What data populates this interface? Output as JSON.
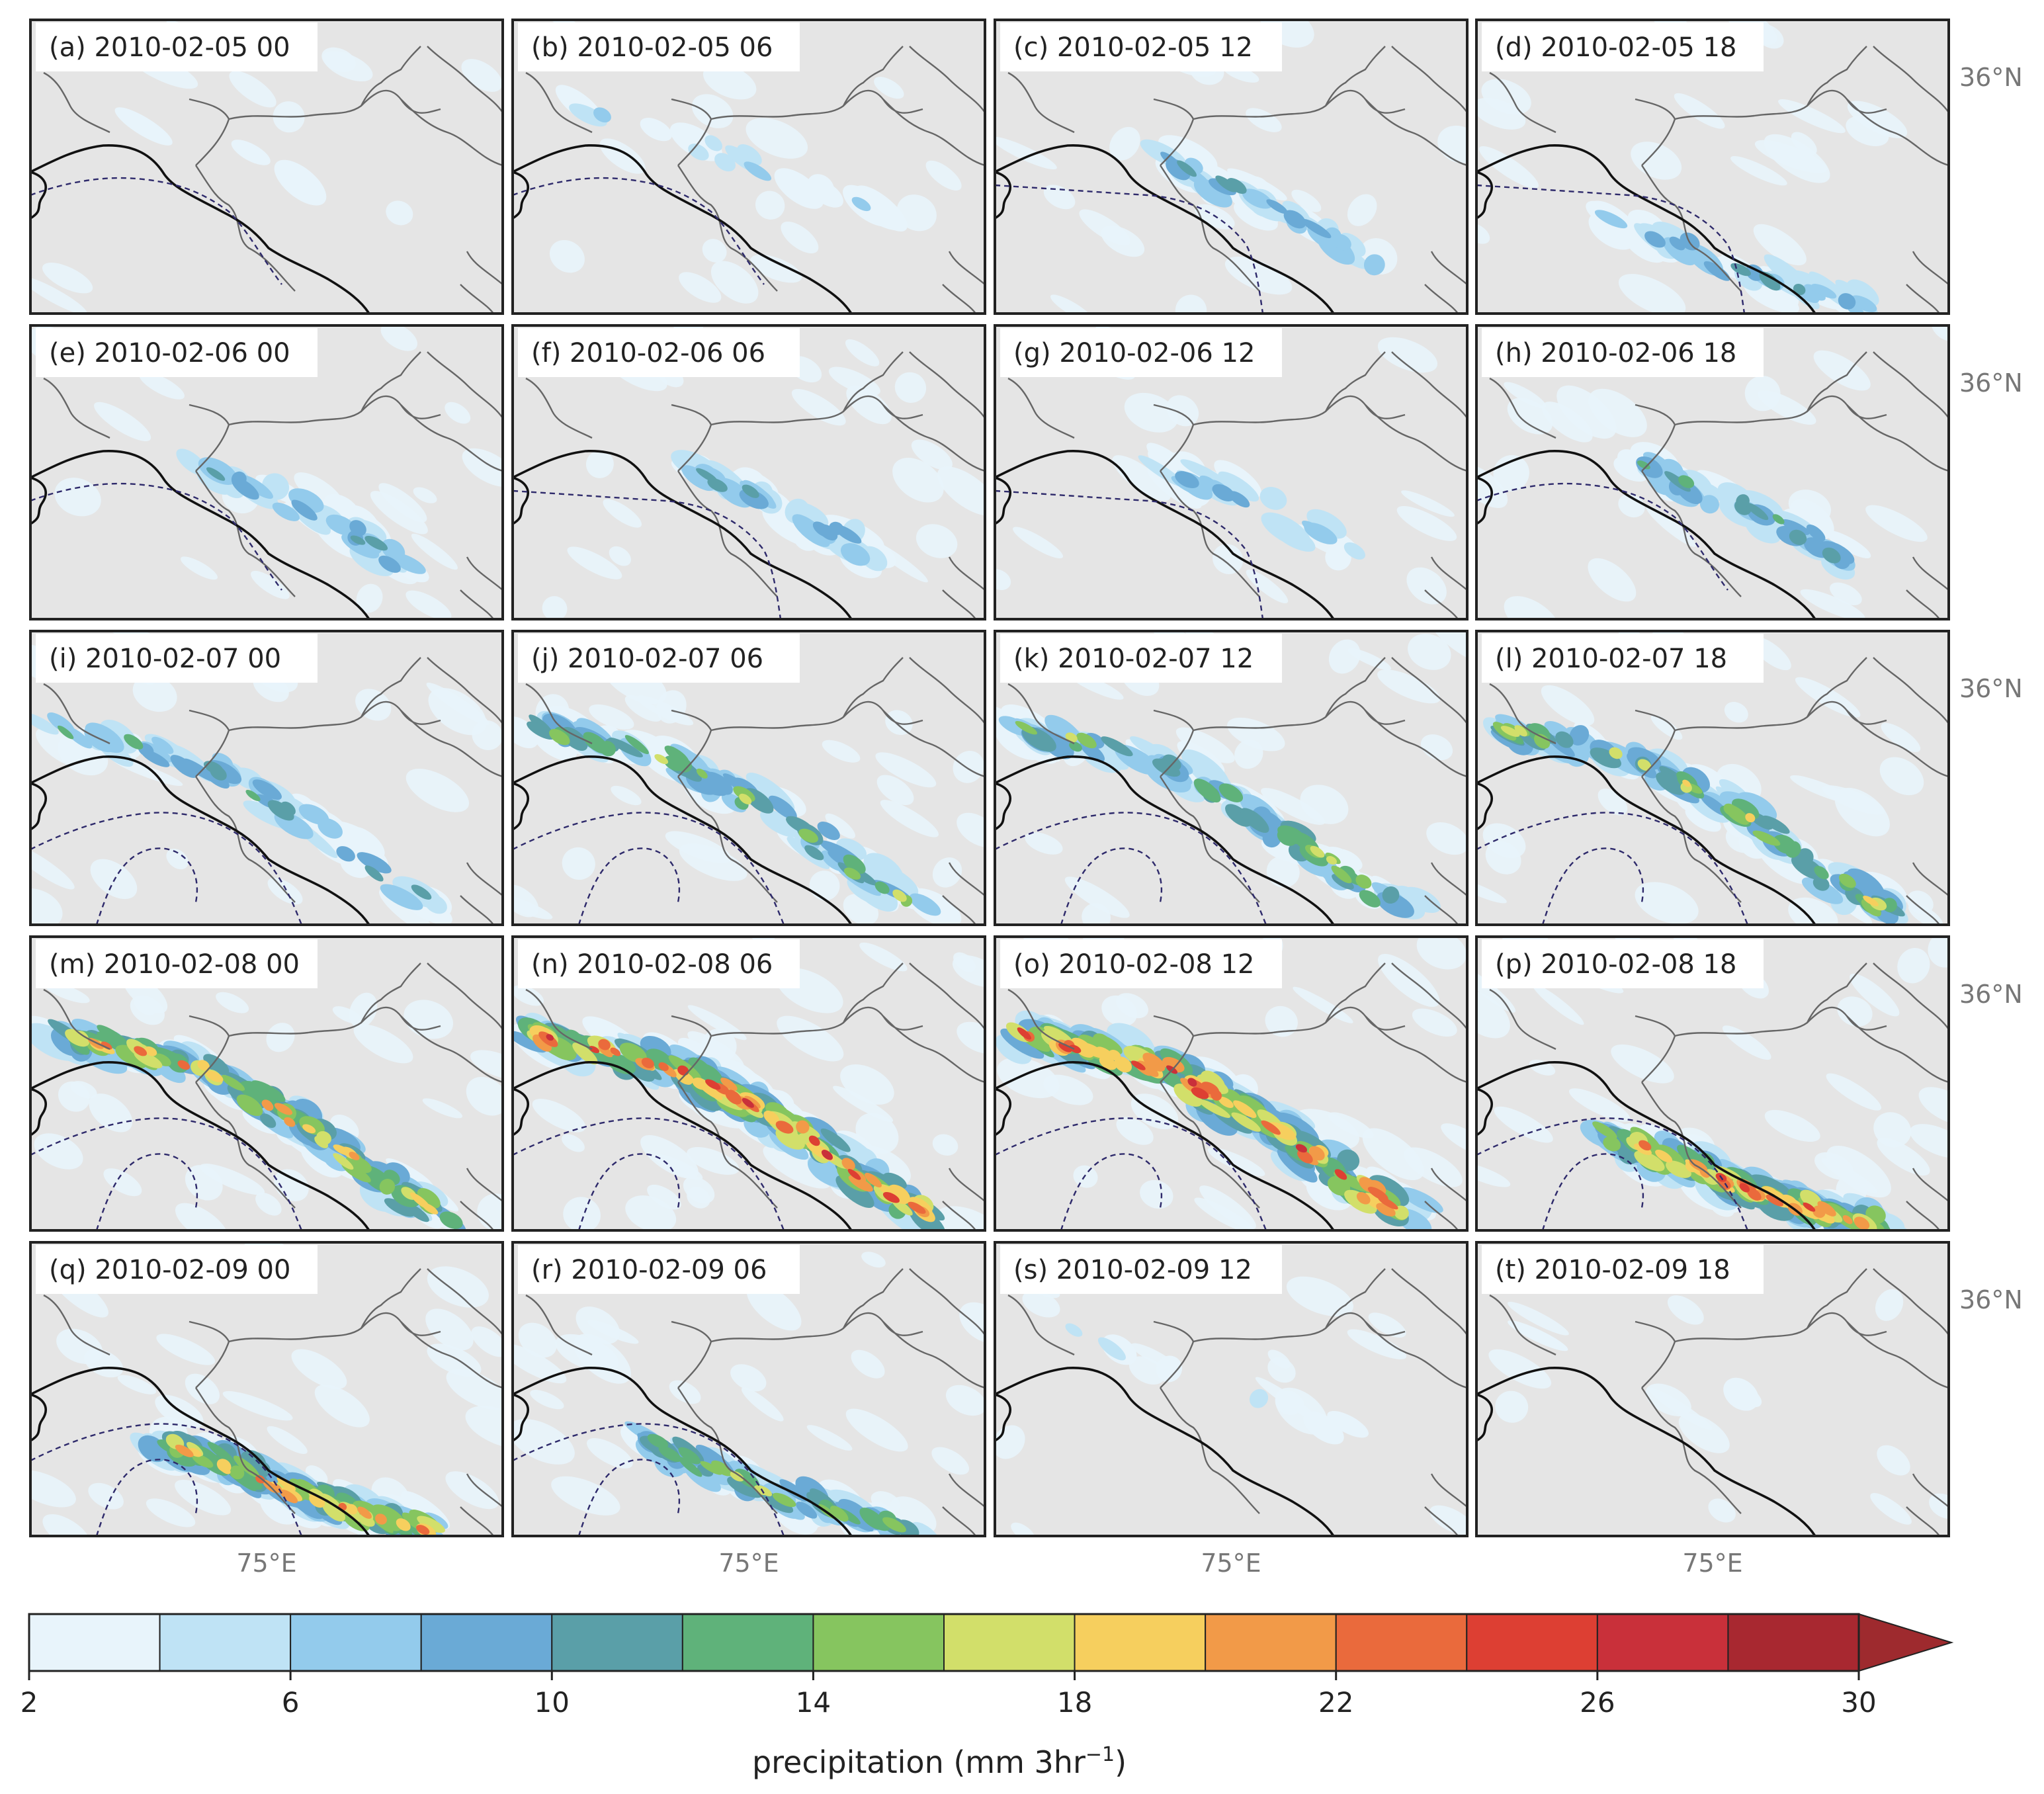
{
  "figure": {
    "panels": [
      {
        "label": "(a) 2010-02-05 00",
        "intensity": 0.05,
        "band": "faint",
        "contour": "west"
      },
      {
        "label": "(b) 2010-02-05 06",
        "intensity": 0.2,
        "band": "faint",
        "contour": "west"
      },
      {
        "label": "(c) 2010-02-05 12",
        "intensity": 0.35,
        "band": "central",
        "contour": "mid"
      },
      {
        "label": "(d) 2010-02-05 18",
        "intensity": 0.35,
        "band": "south",
        "contour": "mid"
      },
      {
        "label": "(e) 2010-02-06 00",
        "intensity": 0.35,
        "band": "central",
        "contour": "west"
      },
      {
        "label": "(f) 2010-02-06 06",
        "intensity": 0.35,
        "band": "central",
        "contour": "mid"
      },
      {
        "label": "(g) 2010-02-06 12",
        "intensity": 0.25,
        "band": "central",
        "contour": "mid"
      },
      {
        "label": "(h) 2010-02-06 18",
        "intensity": 0.4,
        "band": "central",
        "contour": "west"
      },
      {
        "label": "(i) 2010-02-07 00",
        "intensity": 0.45,
        "band": "ridge",
        "contour": "loop"
      },
      {
        "label": "(j) 2010-02-07 06",
        "intensity": 0.55,
        "band": "ridge",
        "contour": "loop"
      },
      {
        "label": "(k) 2010-02-07 12",
        "intensity": 0.55,
        "band": "ridge",
        "contour": "loop"
      },
      {
        "label": "(l) 2010-02-07 18",
        "intensity": 0.65,
        "band": "ridge",
        "contour": "loop"
      },
      {
        "label": "(m) 2010-02-08 00",
        "intensity": 0.75,
        "band": "ridge",
        "contour": "loop"
      },
      {
        "label": "(n) 2010-02-08 06",
        "intensity": 0.95,
        "band": "ridge",
        "contour": "loop"
      },
      {
        "label": "(o) 2010-02-08 12",
        "intensity": 0.95,
        "band": "ridge",
        "contour": "loop"
      },
      {
        "label": "(p) 2010-02-08 18",
        "intensity": 0.85,
        "band": "south",
        "contour": "loop"
      },
      {
        "label": "(q) 2010-02-09 00",
        "intensity": 0.8,
        "band": "south",
        "contour": "loop"
      },
      {
        "label": "(r) 2010-02-09 06",
        "intensity": 0.6,
        "band": "south",
        "contour": "loop"
      },
      {
        "label": "(s) 2010-02-09 12",
        "intensity": 0.15,
        "band": "faint",
        "contour": "none"
      },
      {
        "label": "(t) 2010-02-09 18",
        "intensity": 0.08,
        "band": "faint",
        "contour": "none"
      }
    ],
    "axis_labels": {
      "latitude": "36°N",
      "longitude": "75°E"
    },
    "colorbar": {
      "title_prefix": "precipitation (mm 3hr",
      "title_sup": "−1",
      "title_suffix": ")",
      "min": 2,
      "max": 30,
      "step": 2,
      "tick_labels": [
        "2",
        "6",
        "10",
        "14",
        "18",
        "22",
        "26",
        "30"
      ],
      "extend": "max",
      "colors": [
        "#e8f4fb",
        "#bfe3f5",
        "#93cbec",
        "#6aaad6",
        "#5a9fa8",
        "#5fb27a",
        "#86c55f",
        "#d2df6a",
        "#f6cf5e",
        "#f29a48",
        "#ea6a3c",
        "#dd3f33",
        "#c9303a",
        "#a82830"
      ],
      "extend_color": "#9e2a2e"
    },
    "map_colors": {
      "land": "#e5e5e5",
      "border": "#666666",
      "loc_line": "#111111",
      "contour": "#2e2a6b",
      "frame": "#222222"
    }
  }
}
